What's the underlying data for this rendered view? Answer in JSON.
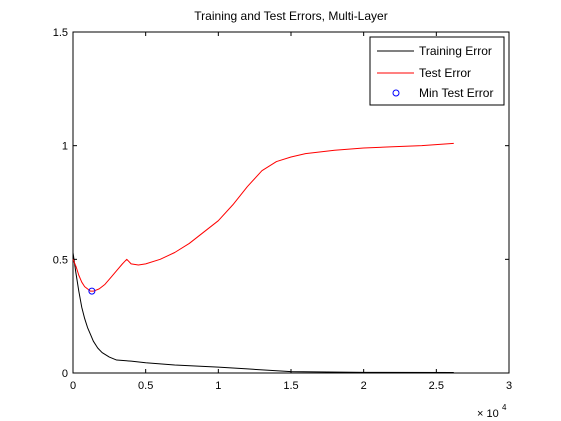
{
  "chart_data": {
    "type": "line",
    "title": "Training and Test Errors, Multi-Layer",
    "xlabel": "",
    "ylabel": "",
    "x_multiplier": "× 10",
    "x_multiplier_exponent": "4",
    "xlim": [
      0,
      3
    ],
    "ylim": [
      0,
      1.5
    ],
    "x_ticks": [
      0,
      0.5,
      1,
      1.5,
      2,
      2.5,
      3
    ],
    "x_tick_labels": [
      "0",
      "0.5",
      "1",
      "1.5",
      "2",
      "2.5",
      "3"
    ],
    "y_ticks": [
      0,
      0.5,
      1,
      1.5
    ],
    "y_tick_labels": [
      "0",
      "0.5",
      "1",
      "1.5"
    ],
    "grid": false,
    "legend_position": "top-right",
    "series": [
      {
        "name": "Training Error",
        "color": "#000000",
        "marker": "none",
        "x": [
          0,
          0.02,
          0.04,
          0.06,
          0.08,
          0.1,
          0.12,
          0.14,
          0.17,
          0.2,
          0.25,
          0.3,
          0.4,
          0.5,
          0.7,
          1.0,
          1.2,
          1.5,
          2.0,
          2.62
        ],
        "y": [
          0.53,
          0.44,
          0.36,
          0.29,
          0.24,
          0.2,
          0.17,
          0.14,
          0.11,
          0.09,
          0.07,
          0.057,
          0.052,
          0.045,
          0.035,
          0.026,
          0.018,
          0.006,
          0.003,
          0.002
        ]
      },
      {
        "name": "Test Error",
        "color": "#ff0000",
        "marker": "none",
        "x": [
          0,
          0.02,
          0.04,
          0.06,
          0.08,
          0.1,
          0.12,
          0.14,
          0.18,
          0.22,
          0.26,
          0.3,
          0.34,
          0.37,
          0.4,
          0.45,
          0.5,
          0.6,
          0.7,
          0.8,
          0.9,
          1.0,
          1.1,
          1.2,
          1.3,
          1.4,
          1.5,
          1.6,
          1.8,
          2.0,
          2.2,
          2.4,
          2.62
        ],
        "y": [
          0.5,
          0.47,
          0.43,
          0.4,
          0.38,
          0.37,
          0.36,
          0.36,
          0.37,
          0.39,
          0.42,
          0.45,
          0.48,
          0.5,
          0.48,
          0.475,
          0.48,
          0.5,
          0.53,
          0.57,
          0.62,
          0.67,
          0.74,
          0.82,
          0.89,
          0.93,
          0.95,
          0.965,
          0.98,
          0.99,
          0.995,
          1.0,
          1.01
        ]
      },
      {
        "name": "Min Test Error",
        "color": "#0000ff",
        "marker": "circle",
        "line": "none",
        "x": [
          0.13
        ],
        "y": [
          0.36
        ]
      }
    ]
  }
}
